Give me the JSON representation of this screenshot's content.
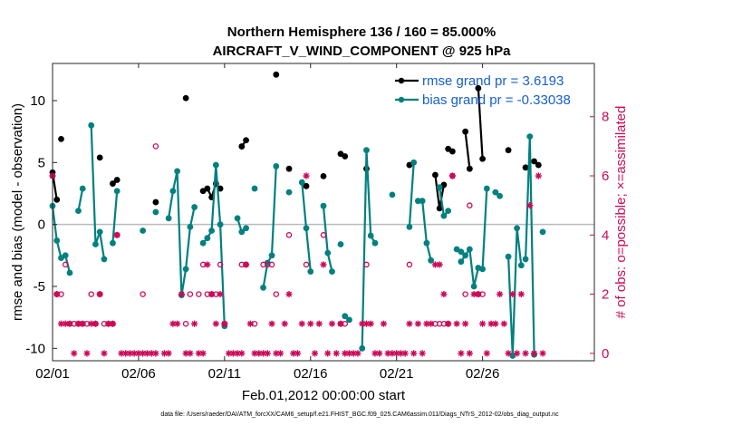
{
  "chart_data": {
    "type": "line",
    "title": "Northern Hemisphere 136 / 160 = 85.000%",
    "subtitle": "AIRCRAFT_V_WIND_COMPONENT @ 925 hPa",
    "xlabel": "Feb.01,2012 00:00:00 start",
    "ylabel": "rmse and bias (model - observation)",
    "y2label": "# of obs: o=possible; ×=assimilated",
    "footnote": "data file: /Users/raeder/DAI/ATM_forcXX/CAM6_setup/f.e21.FHIST_BGC.f09_025.CAM6assim.011/Diags_NTrS_2012-02/obs_diag_output.nc",
    "xlim": [
      1,
      32.5
    ],
    "ylim": [
      -11,
      13
    ],
    "y2lim": [
      -0.25,
      9.8
    ],
    "x_ticks": [
      1,
      6,
      11,
      16,
      21,
      26
    ],
    "x_tick_labels": [
      "02/01",
      "02/06",
      "02/11",
      "02/16",
      "02/21",
      "02/26"
    ],
    "y_ticks": [
      -10,
      -5,
      0,
      5,
      10
    ],
    "y2_ticks": [
      0,
      2,
      4,
      6,
      8
    ],
    "zero_line": 0,
    "colors": {
      "rmse": "#000000",
      "bias": "#008080",
      "obs": "#cc0a58",
      "legend_text": "#1560d0",
      "zero_line": "#bbbbbb"
    },
    "legend": [
      {
        "name": "rmse",
        "label": "rmse grand pr = 3.6193"
      },
      {
        "name": "bias",
        "label": "bias grand pr = -0.33038"
      }
    ],
    "series": [
      {
        "name": "rmse",
        "segments": [
          [
            [
              1.0,
              4.2
            ],
            [
              1.25,
              2.0
            ]
          ],
          [
            [
              1.5,
              6.9
            ]
          ],
          [
            [
              3.75,
              5.4
            ]
          ],
          [
            [
              4.5,
              3.3
            ],
            [
              4.75,
              3.6
            ]
          ],
          [
            [
              7.0,
              1.8
            ]
          ],
          [
            [
              8.75,
              10.2
            ]
          ],
          [
            [
              9.75,
              2.7
            ],
            [
              10.0,
              2.9
            ],
            [
              10.25,
              2.2
            ],
            [
              10.5,
              3.3
            ],
            [
              10.75,
              2.9
            ]
          ],
          [
            [
              12.0,
              6.3
            ],
            [
              12.25,
              6.8
            ]
          ],
          [
            [
              14.0,
              12.1
            ]
          ],
          [
            [
              14.75,
              4.5
            ]
          ],
          [
            [
              15.75,
              3.1
            ]
          ],
          [
            [
              16.75,
              3.9
            ]
          ],
          [
            [
              17.75,
              5.7
            ],
            [
              18.0,
              5.5
            ]
          ],
          [
            [
              19.25,
              4.5
            ]
          ],
          [
            [
              21.75,
              4.8
            ]
          ],
          [
            [
              23.25,
              4.0
            ],
            [
              23.5,
              1.3
            ],
            [
              23.75,
              3.2
            ]
          ],
          [
            [
              24.0,
              6.1
            ],
            [
              24.25,
              5.9
            ]
          ],
          [
            [
              25.0,
              7.5
            ],
            [
              25.25,
              4.5
            ]
          ],
          [
            [
              25.75,
              11.0
            ],
            [
              26.0,
              5.3
            ]
          ],
          [
            [
              27.5,
              6.0
            ]
          ],
          [
            [
              28.5,
              4.6
            ]
          ],
          [
            [
              29.0,
              5.1
            ],
            [
              29.25,
              4.8
            ]
          ]
        ]
      },
      {
        "name": "bias",
        "segments": [
          [
            [
              1.0,
              1.5
            ],
            [
              1.25,
              -1.3
            ],
            [
              1.5,
              -2.7
            ],
            [
              1.75,
              -2.5
            ],
            [
              2.0,
              -3.9
            ]
          ],
          [
            [
              2.5,
              1.1
            ],
            [
              2.75,
              2.9
            ]
          ],
          [
            [
              3.25,
              8.0
            ],
            [
              3.5,
              -1.6
            ],
            [
              3.75,
              -0.6
            ],
            [
              4.0,
              -2.8
            ]
          ],
          [
            [
              4.5,
              -1.5
            ],
            [
              4.75,
              2.7
            ]
          ],
          [
            [
              6.25,
              -0.5
            ]
          ],
          [
            [
              7.0,
              1.0
            ]
          ],
          [
            [
              7.75,
              0.5
            ],
            [
              8.0,
              2.7
            ],
            [
              8.25,
              4.3
            ],
            [
              8.5,
              -5.7
            ],
            [
              8.75,
              -3.6
            ],
            [
              9.0,
              -0.2
            ],
            [
              9.25,
              1.4
            ]
          ],
          [
            [
              9.75,
              -1.5
            ],
            [
              10.0,
              -1.1
            ],
            [
              10.25,
              -0.5
            ],
            [
              10.5,
              4.8
            ],
            [
              10.75,
              0.0
            ],
            [
              11.0,
              -8.2
            ]
          ],
          [
            [
              11.75,
              0.5
            ],
            [
              12.0,
              -0.6
            ],
            [
              12.25,
              -0.3
            ]
          ],
          [
            [
              12.75,
              2.9
            ]
          ],
          [
            [
              13.25,
              -5.1
            ],
            [
              13.5,
              -3.1
            ],
            [
              13.75,
              -2.5
            ],
            [
              14.0,
              4.7
            ]
          ],
          [
            [
              14.75,
              2.6
            ]
          ],
          [
            [
              15.5,
              3.4
            ],
            [
              15.75,
              -0.3
            ],
            [
              16.0,
              -3.8
            ]
          ],
          [
            [
              16.75,
              1.5
            ],
            [
              17.0,
              -2.3
            ],
            [
              17.25,
              -3.8
            ]
          ],
          [
            [
              17.75,
              -1.6
            ]
          ],
          [
            [
              18.0,
              -7.4
            ],
            [
              18.25,
              -7.7
            ]
          ],
          [
            [
              19.0,
              -10.0
            ],
            [
              19.25,
              6.0
            ],
            [
              19.5,
              -0.9
            ],
            [
              19.75,
              -1.5
            ]
          ],
          [
            [
              20.75,
              2.4
            ]
          ],
          [
            [
              21.75,
              -0.2
            ],
            [
              22.0,
              5.0
            ]
          ],
          [
            [
              22.25,
              1.9
            ]
          ],
          [
            [
              22.5,
              1.9
            ],
            [
              22.75,
              -1.5
            ],
            [
              23.0,
              -2.9
            ]
          ],
          [
            [
              23.5,
              3.0
            ],
            [
              23.75,
              0.7
            ],
            [
              24.0,
              1.1
            ]
          ],
          [
            [
              24.5,
              -2.0
            ]
          ],
          [
            [
              24.75,
              -2.2
            ]
          ],
          [
            [
              24.75,
              -3.0
            ],
            [
              25.0,
              -2.5
            ],
            [
              25.25,
              -2.0
            ],
            [
              25.5,
              -5.0
            ],
            [
              25.75,
              -3.5
            ]
          ],
          [
            [
              26.0,
              -3.6
            ],
            [
              26.25,
              2.9
            ]
          ],
          [
            [
              26.75,
              2.6
            ],
            [
              27.0,
              2.3
            ]
          ],
          [
            [
              27.5,
              -2.6
            ],
            [
              27.75,
              -10.6
            ],
            [
              28.0,
              -0.3
            ],
            [
              28.25,
              -3.3
            ]
          ],
          [
            [
              28.5,
              -2.8
            ],
            [
              28.75,
              7.1
            ],
            [
              29.0,
              -10.5
            ]
          ],
          [
            [
              29.5,
              -0.6
            ]
          ]
        ]
      }
    ],
    "obs_possible": [
      [
        1.0,
        6
      ],
      [
        1.25,
        2
      ],
      [
        1.5,
        2
      ],
      [
        1.75,
        3
      ],
      [
        2.0,
        1
      ],
      [
        2.25,
        1
      ],
      [
        2.5,
        1
      ],
      [
        2.75,
        1
      ],
      [
        3.0,
        1
      ],
      [
        3.25,
        2
      ],
      [
        3.5,
        1
      ],
      [
        3.75,
        2
      ],
      [
        4.0,
        1
      ],
      [
        4.25,
        1
      ],
      [
        4.5,
        1
      ],
      [
        4.75,
        4
      ],
      [
        6.25,
        2
      ],
      [
        7.0,
        7
      ],
      [
        8.75,
        1
      ],
      [
        9.0,
        2
      ],
      [
        9.5,
        2
      ],
      [
        9.75,
        3
      ],
      [
        10.0,
        2
      ],
      [
        10.25,
        2
      ],
      [
        10.5,
        2
      ],
      [
        10.75,
        3
      ],
      [
        11.0,
        1
      ],
      [
        12.0,
        3
      ],
      [
        12.25,
        3
      ],
      [
        12.75,
        1
      ],
      [
        13.25,
        3
      ],
      [
        13.5,
        3
      ],
      [
        13.75,
        3
      ],
      [
        14.0,
        2
      ],
      [
        14.75,
        4
      ],
      [
        15.75,
        3
      ],
      [
        16.75,
        4
      ],
      [
        17.75,
        1
      ],
      [
        18.0,
        1
      ],
      [
        19.25,
        3
      ],
      [
        21.75,
        3
      ],
      [
        23.25,
        1
      ],
      [
        23.5,
        1
      ],
      [
        23.75,
        1
      ],
      [
        24.0,
        1
      ],
      [
        24.25,
        6
      ],
      [
        25.0,
        2
      ],
      [
        25.25,
        5
      ],
      [
        25.75,
        2
      ],
      [
        26.0,
        2
      ]
    ],
    "obs_assimilated": [
      [
        1.0,
        6
      ],
      [
        1.25,
        2
      ],
      [
        1.5,
        1
      ],
      [
        1.75,
        1
      ],
      [
        2.0,
        1
      ],
      [
        2.25,
        0
      ],
      [
        2.5,
        1
      ],
      [
        2.75,
        1
      ],
      [
        3.0,
        0
      ],
      [
        3.25,
        1
      ],
      [
        3.5,
        1
      ],
      [
        3.75,
        2
      ],
      [
        4.0,
        0
      ],
      [
        4.25,
        1
      ],
      [
        4.5,
        1
      ],
      [
        4.75,
        4
      ],
      [
        5.0,
        0
      ],
      [
        5.25,
        0
      ],
      [
        5.5,
        0
      ],
      [
        5.75,
        0
      ],
      [
        6.0,
        0
      ],
      [
        6.25,
        0
      ],
      [
        6.5,
        0
      ],
      [
        6.75,
        0
      ],
      [
        7.0,
        0
      ],
      [
        7.5,
        0
      ],
      [
        7.75,
        0
      ],
      [
        8.0,
        1
      ],
      [
        8.25,
        1
      ],
      [
        8.5,
        2
      ],
      [
        8.75,
        0
      ],
      [
        9.0,
        0
      ],
      [
        9.25,
        1
      ],
      [
        9.5,
        0
      ],
      [
        9.75,
        0
      ],
      [
        10.0,
        3
      ],
      [
        10.25,
        2
      ],
      [
        10.5,
        1
      ],
      [
        10.75,
        2
      ],
      [
        11.0,
        1
      ],
      [
        11.25,
        0
      ],
      [
        11.5,
        0
      ],
      [
        11.75,
        0
      ],
      [
        12.0,
        0
      ],
      [
        12.25,
        3
      ],
      [
        12.5,
        1
      ],
      [
        12.75,
        0
      ],
      [
        13.0,
        0
      ],
      [
        13.25,
        0
      ],
      [
        13.5,
        0
      ],
      [
        13.75,
        1
      ],
      [
        14.0,
        0
      ],
      [
        14.25,
        0
      ],
      [
        14.5,
        1
      ],
      [
        14.75,
        2
      ],
      [
        15.0,
        0
      ],
      [
        15.25,
        0
      ],
      [
        15.5,
        1
      ],
      [
        15.75,
        6
      ],
      [
        16.0,
        1
      ],
      [
        16.25,
        0
      ],
      [
        16.5,
        1
      ],
      [
        16.75,
        3
      ],
      [
        17.0,
        0
      ],
      [
        17.25,
        1
      ],
      [
        17.5,
        0
      ],
      [
        17.75,
        1
      ],
      [
        18.0,
        0
      ],
      [
        18.25,
        0
      ],
      [
        18.5,
        0
      ],
      [
        18.75,
        0
      ],
      [
        19.0,
        1
      ],
      [
        19.25,
        1
      ],
      [
        19.5,
        1
      ],
      [
        19.75,
        0
      ],
      [
        20.0,
        0
      ],
      [
        20.25,
        1
      ],
      [
        20.5,
        0
      ],
      [
        20.75,
        0
      ],
      [
        21.0,
        0
      ],
      [
        21.25,
        0
      ],
      [
        21.5,
        0
      ],
      [
        21.75,
        1
      ],
      [
        22.0,
        0
      ],
      [
        22.25,
        1
      ],
      [
        22.5,
        0
      ],
      [
        22.75,
        1
      ],
      [
        23.0,
        1
      ],
      [
        23.25,
        3
      ],
      [
        23.5,
        3
      ],
      [
        23.75,
        2
      ],
      [
        24.0,
        1
      ],
      [
        24.25,
        6
      ],
      [
        24.5,
        1
      ],
      [
        24.75,
        0
      ],
      [
        25.0,
        1
      ],
      [
        25.25,
        0
      ],
      [
        25.5,
        2
      ],
      [
        25.75,
        2
      ],
      [
        26.0,
        1
      ],
      [
        26.25,
        0
      ],
      [
        26.5,
        1
      ],
      [
        26.75,
        1
      ],
      [
        27.0,
        2
      ],
      [
        27.25,
        1
      ],
      [
        27.5,
        0
      ],
      [
        27.75,
        2
      ],
      [
        28.0,
        0
      ],
      [
        28.25,
        2
      ],
      [
        28.5,
        0
      ],
      [
        28.75,
        5
      ],
      [
        29.0,
        0
      ],
      [
        29.25,
        6
      ],
      [
        29.5,
        0
      ]
    ]
  }
}
